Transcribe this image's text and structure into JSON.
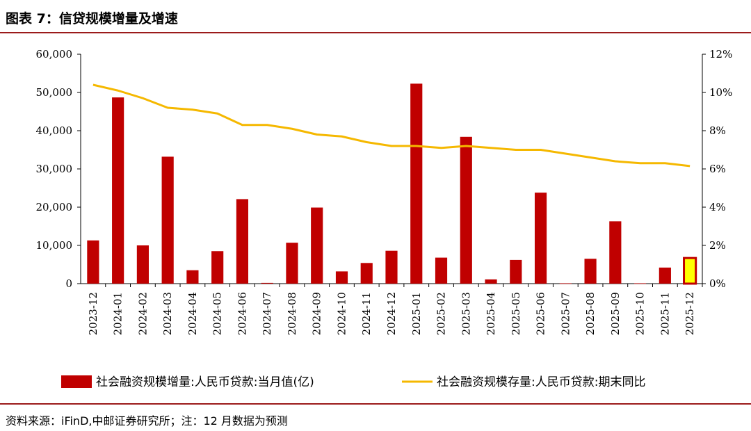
{
  "header": {
    "title": "图表 7：信贷规模增量及增速"
  },
  "footer": {
    "source": "资料来源：iFinD,中邮证券研究所；注：12 月数据为预测"
  },
  "colors": {
    "bar": "#c00000",
    "bar_forecast": "#ffff00",
    "line": "#f5b800",
    "rule": "#9b1b1b"
  },
  "chart_data": {
    "type": "bar",
    "categories": [
      "2023-12",
      "2024-01",
      "2024-02",
      "2024-03",
      "2024-04",
      "2024-05",
      "2024-06",
      "2024-07",
      "2024-08",
      "2024-09",
      "2024-10",
      "2024-11",
      "2024-12",
      "2025-01",
      "2025-02",
      "2025-03",
      "2025-04",
      "2025-05",
      "2025-06",
      "2025-07",
      "2025-08",
      "2025-09",
      "2025-10",
      "2025-11",
      "2025-12"
    ],
    "series": [
      {
        "name": "社会融资规模增量:人民币贷款:当月值(亿)",
        "type": "bar",
        "axis": "left",
        "values": [
          11300,
          48700,
          10000,
          33200,
          3500,
          8500,
          22100,
          200,
          10700,
          19900,
          3200,
          5400,
          8600,
          52300,
          6800,
          38400,
          1100,
          6200,
          23800,
          100,
          6500,
          16300,
          100,
          4200,
          6700
        ]
      },
      {
        "name": "社会融资规模存量:人民币贷款:期末同比",
        "type": "line",
        "axis": "right",
        "values": [
          10.4,
          10.1,
          9.7,
          9.2,
          9.1,
          8.9,
          8.3,
          8.3,
          8.1,
          7.8,
          7.7,
          7.4,
          7.2,
          7.2,
          7.1,
          7.2,
          7.1,
          7.0,
          7.0,
          6.8,
          6.6,
          6.4,
          6.3,
          6.3,
          6.15
        ]
      }
    ],
    "forecast_index": 24,
    "y_left": {
      "lim": [
        0,
        60000
      ],
      "ticks": [
        "0",
        "10,000",
        "20,000",
        "30,000",
        "40,000",
        "50,000",
        "60,000"
      ]
    },
    "y_right": {
      "lim": [
        0,
        12
      ],
      "ticks": [
        "0%",
        "2%",
        "4%",
        "6%",
        "8%",
        "10%",
        "12%"
      ]
    },
    "grid": false,
    "legend_position": "bottom"
  }
}
